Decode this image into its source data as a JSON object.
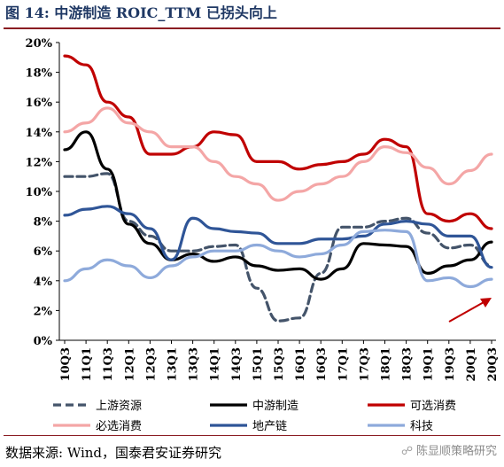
{
  "title": "图 14:  中游制造 ROIC_TTM 已拐头向上",
  "source": "数据来源:  Wind，国泰君安证券研究",
  "watermark": "陈显顺策略研究",
  "watermark_icon": "wechat-icon",
  "chart_data": {
    "type": "line",
    "ylim": [
      0,
      20
    ],
    "y_ticks": [
      "0%",
      "2%",
      "4%",
      "6%",
      "8%",
      "10%",
      "12%",
      "14%",
      "16%",
      "18%",
      "20%"
    ],
    "categories": [
      "10Q3",
      "11Q1",
      "11Q3",
      "12Q1",
      "12Q3",
      "13Q1",
      "13Q3",
      "14Q1",
      "14Q3",
      "15Q1",
      "15Q3",
      "16Q1",
      "16Q3",
      "17Q1",
      "17Q3",
      "18Q1",
      "18Q3",
      "19Q1",
      "19Q3",
      "20Q1",
      "20Q3"
    ],
    "series": [
      {
        "name": "上游资源",
        "color": "#44546a",
        "dash": true,
        "values": [
          11.0,
          11.0,
          11.2,
          8.0,
          7.0,
          6.0,
          6.0,
          6.3,
          6.4,
          3.5,
          1.3,
          1.5,
          4.5,
          7.6,
          7.6,
          8.0,
          8.2,
          7.2,
          6.2,
          6.4,
          5.0
        ]
      },
      {
        "name": "中游制造",
        "color": "#000000",
        "dash": false,
        "values": [
          12.8,
          14.0,
          11.5,
          7.8,
          6.5,
          5.4,
          5.8,
          5.3,
          5.6,
          5.0,
          4.7,
          4.8,
          4.1,
          4.8,
          6.5,
          6.4,
          6.3,
          4.5,
          5.0,
          5.4,
          6.6
        ]
      },
      {
        "name": "可选消费",
        "color": "#c00000",
        "dash": false,
        "values": [
          19.1,
          18.5,
          16.0,
          15.0,
          12.5,
          12.5,
          13.0,
          14.0,
          13.8,
          12.0,
          12.0,
          11.5,
          11.8,
          12.0,
          12.5,
          13.5,
          13.0,
          8.5,
          8.0,
          8.5,
          7.5
        ]
      },
      {
        "name": "必选消费",
        "color": "#f4a6a6",
        "dash": false,
        "values": [
          14.0,
          14.6,
          15.6,
          14.6,
          14.0,
          13.0,
          13.0,
          12.0,
          11.0,
          10.5,
          9.4,
          10.0,
          10.5,
          11.0,
          12.0,
          13.0,
          12.6,
          11.6,
          10.5,
          11.4,
          12.5
        ]
      },
      {
        "name": "地产链",
        "color": "#2f5597",
        "dash": false,
        "values": [
          8.4,
          8.8,
          9.0,
          8.5,
          7.5,
          5.4,
          8.2,
          7.5,
          7.3,
          7.2,
          6.5,
          6.5,
          6.8,
          6.8,
          7.0,
          7.8,
          8.0,
          7.8,
          7.0,
          7.0,
          4.9
        ]
      },
      {
        "name": "科技",
        "color": "#8eaadb",
        "dash": false,
        "values": [
          4.0,
          4.8,
          5.4,
          5.0,
          4.2,
          5.0,
          5.6,
          6.0,
          6.0,
          6.4,
          6.0,
          5.6,
          5.8,
          6.4,
          7.3,
          7.4,
          7.3,
          4.0,
          4.2,
          3.6,
          4.1
        ]
      }
    ],
    "annotation": {
      "type": "arrow",
      "color": "#c00000"
    },
    "legend": {
      "position": "bottom",
      "columns": 3
    }
  }
}
